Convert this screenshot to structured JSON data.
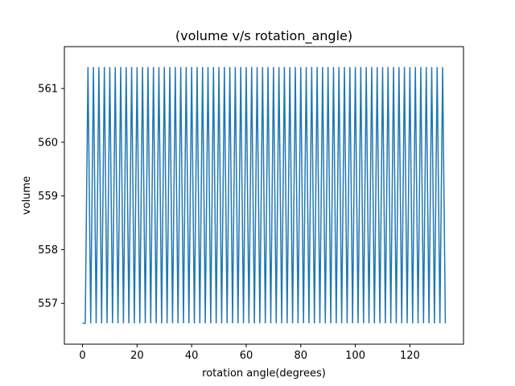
{
  "chart_data": {
    "type": "line",
    "title": "(volume v/s rotation_angle)",
    "xlabel": "rotation angle(degrees)",
    "ylabel": "volume",
    "xlim": [
      -6.65,
      139.65
    ],
    "ylim": [
      556.24,
      561.78
    ],
    "xticks": [
      0,
      20,
      40,
      60,
      80,
      100,
      120
    ],
    "yticks": [
      557,
      558,
      559,
      560,
      561
    ],
    "grid": false,
    "legend": "none",
    "line_color": "#1f77b4",
    "series": [
      {
        "x": [
          0,
          1,
          2,
          3,
          4,
          5,
          6,
          7,
          8,
          9,
          10,
          11,
          12,
          13,
          14,
          15,
          16,
          17,
          18,
          19,
          20,
          21,
          22,
          23,
          24,
          25,
          26,
          27,
          28,
          29,
          30,
          31,
          32,
          33,
          34,
          35,
          36,
          37,
          38,
          39,
          40,
          41,
          42,
          43,
          44,
          45,
          46,
          47,
          48,
          49,
          50,
          51,
          52,
          53,
          54,
          55,
          56,
          57,
          58,
          59,
          60,
          61,
          62,
          63,
          64,
          65,
          66,
          67,
          68,
          69,
          70,
          71,
          72,
          73,
          74,
          75,
          76,
          77,
          78,
          79,
          80,
          81,
          82,
          83,
          84,
          85,
          86,
          87,
          88,
          89,
          90,
          91,
          92,
          93,
          94,
          95,
          96,
          97,
          98,
          99,
          100,
          101,
          102,
          103,
          104,
          105,
          106,
          107,
          108,
          109,
          110,
          111,
          112,
          113,
          114,
          115,
          116,
          117,
          118,
          119,
          120,
          121,
          122,
          123,
          124,
          125,
          126,
          127,
          128,
          129,
          130,
          131,
          132,
          133
        ],
        "values": [
          556.63,
          556.63,
          561.4,
          556.63,
          561.4,
          556.63,
          561.4,
          556.63,
          561.4,
          556.63,
          561.4,
          556.63,
          561.4,
          556.63,
          561.4,
          556.63,
          561.4,
          556.63,
          561.4,
          556.63,
          561.4,
          556.63,
          561.4,
          556.63,
          561.4,
          556.63,
          561.4,
          556.63,
          561.4,
          556.63,
          561.4,
          556.63,
          561.4,
          556.63,
          561.4,
          556.63,
          561.4,
          556.63,
          561.4,
          556.63,
          561.4,
          556.63,
          561.4,
          556.63,
          561.4,
          556.63,
          561.4,
          556.63,
          561.4,
          556.63,
          561.4,
          556.63,
          561.4,
          556.63,
          561.4,
          556.63,
          561.4,
          556.63,
          561.4,
          556.63,
          561.4,
          556.63,
          561.4,
          556.63,
          561.4,
          556.63,
          561.4,
          556.63,
          561.4,
          556.63,
          561.4,
          556.63,
          561.4,
          556.63,
          561.4,
          556.63,
          561.4,
          556.63,
          561.4,
          556.63,
          561.4,
          556.63,
          561.4,
          556.63,
          561.4,
          556.63,
          561.4,
          556.63,
          561.4,
          556.63,
          561.4,
          556.63,
          561.4,
          556.63,
          561.4,
          556.63,
          561.4,
          556.63,
          561.4,
          556.63,
          561.4,
          556.63,
          561.4,
          556.63,
          561.4,
          556.63,
          561.4,
          556.63,
          561.4,
          556.63,
          561.4,
          556.63,
          561.4,
          556.63,
          561.4,
          556.63,
          561.4,
          556.63,
          561.4,
          556.63,
          561.4,
          556.63,
          561.4,
          556.63,
          561.4,
          556.63,
          561.4,
          556.63,
          561.4,
          556.63,
          561.4,
          556.63,
          561.4,
          556.63
        ]
      }
    ]
  }
}
